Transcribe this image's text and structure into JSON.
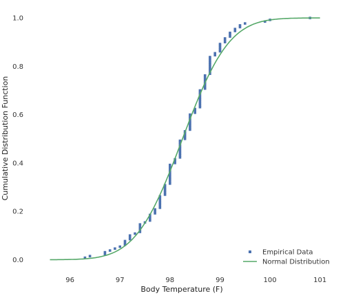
{
  "chart_data": {
    "type": "scatter",
    "title": "",
    "xlabel": "Body Temperature (F)",
    "ylabel": "Cumulative Distribution Function",
    "xlim": [
      95.4,
      101.1
    ],
    "ylim": [
      -0.03,
      1.04
    ],
    "x_ticks": [
      96,
      97,
      98,
      99,
      100,
      101
    ],
    "y_ticks": [
      0.0,
      0.2,
      0.4,
      0.6,
      0.8,
      1.0
    ],
    "x_tick_labels": [
      "96",
      "97",
      "98",
      "99",
      "100",
      "101"
    ],
    "y_tick_labels": [
      "0.0",
      "0.2",
      "0.4",
      "0.6",
      "0.8",
      "1.0"
    ],
    "grid": false,
    "legend_position": "bottom-right",
    "series": [
      {
        "name": "Empirical Data",
        "kind": "points",
        "color": "#4c72b0",
        "points": [
          [
            96.3,
            0.008
          ],
          [
            96.4,
            0.015
          ],
          [
            96.7,
            0.023
          ],
          [
            96.7,
            0.031
          ],
          [
            96.8,
            0.038
          ],
          [
            96.9,
            0.046
          ],
          [
            97.0,
            0.054
          ],
          [
            97.1,
            0.062
          ],
          [
            97.1,
            0.069
          ],
          [
            97.1,
            0.077
          ],
          [
            97.2,
            0.085
          ],
          [
            97.2,
            0.092
          ],
          [
            97.2,
            0.1
          ],
          [
            97.3,
            0.108
          ],
          [
            97.4,
            0.115
          ],
          [
            97.4,
            0.123
          ],
          [
            97.4,
            0.131
          ],
          [
            97.4,
            0.138
          ],
          [
            97.4,
            0.146
          ],
          [
            97.5,
            0.154
          ],
          [
            97.6,
            0.162
          ],
          [
            97.6,
            0.169
          ],
          [
            97.6,
            0.177
          ],
          [
            97.6,
            0.185
          ],
          [
            97.7,
            0.192
          ],
          [
            97.7,
            0.2
          ],
          [
            97.7,
            0.208
          ],
          [
            97.8,
            0.215
          ],
          [
            97.8,
            0.223
          ],
          [
            97.8,
            0.231
          ],
          [
            97.8,
            0.238
          ],
          [
            97.8,
            0.246
          ],
          [
            97.8,
            0.254
          ],
          [
            97.8,
            0.262
          ],
          [
            97.9,
            0.269
          ],
          [
            97.9,
            0.277
          ],
          [
            97.9,
            0.285
          ],
          [
            97.9,
            0.292
          ],
          [
            97.9,
            0.3
          ],
          [
            97.9,
            0.308
          ],
          [
            98.0,
            0.315
          ],
          [
            98.0,
            0.323
          ],
          [
            98.0,
            0.331
          ],
          [
            98.0,
            0.338
          ],
          [
            98.0,
            0.346
          ],
          [
            98.0,
            0.354
          ],
          [
            98.0,
            0.362
          ],
          [
            98.0,
            0.369
          ],
          [
            98.0,
            0.377
          ],
          [
            98.0,
            0.385
          ],
          [
            98.0,
            0.392
          ],
          [
            98.1,
            0.4
          ],
          [
            98.1,
            0.408
          ],
          [
            98.1,
            0.415
          ],
          [
            98.2,
            0.423
          ],
          [
            98.2,
            0.431
          ],
          [
            98.2,
            0.438
          ],
          [
            98.2,
            0.446
          ],
          [
            98.2,
            0.454
          ],
          [
            98.2,
            0.462
          ],
          [
            98.2,
            0.469
          ],
          [
            98.2,
            0.477
          ],
          [
            98.2,
            0.485
          ],
          [
            98.2,
            0.492
          ],
          [
            98.3,
            0.5
          ],
          [
            98.3,
            0.508
          ],
          [
            98.3,
            0.515
          ],
          [
            98.3,
            0.523
          ],
          [
            98.3,
            0.531
          ],
          [
            98.4,
            0.538
          ],
          [
            98.4,
            0.546
          ],
          [
            98.4,
            0.554
          ],
          [
            98.4,
            0.562
          ],
          [
            98.4,
            0.569
          ],
          [
            98.4,
            0.577
          ],
          [
            98.4,
            0.585
          ],
          [
            98.4,
            0.592
          ],
          [
            98.4,
            0.6
          ],
          [
            98.5,
            0.608
          ],
          [
            98.5,
            0.615
          ],
          [
            98.5,
            0.623
          ],
          [
            98.6,
            0.631
          ],
          [
            98.6,
            0.638
          ],
          [
            98.6,
            0.646
          ],
          [
            98.6,
            0.654
          ],
          [
            98.6,
            0.662
          ],
          [
            98.6,
            0.669
          ],
          [
            98.6,
            0.677
          ],
          [
            98.6,
            0.685
          ],
          [
            98.6,
            0.692
          ],
          [
            98.6,
            0.7
          ],
          [
            98.7,
            0.708
          ],
          [
            98.7,
            0.715
          ],
          [
            98.7,
            0.723
          ],
          [
            98.7,
            0.731
          ],
          [
            98.7,
            0.738
          ],
          [
            98.7,
            0.746
          ],
          [
            98.7,
            0.754
          ],
          [
            98.7,
            0.762
          ],
          [
            98.8,
            0.769
          ],
          [
            98.8,
            0.777
          ],
          [
            98.8,
            0.785
          ],
          [
            98.8,
            0.792
          ],
          [
            98.8,
            0.8
          ],
          [
            98.8,
            0.808
          ],
          [
            98.8,
            0.815
          ],
          [
            98.8,
            0.823
          ],
          [
            98.8,
            0.831
          ],
          [
            98.8,
            0.838
          ],
          [
            98.9,
            0.846
          ],
          [
            98.9,
            0.854
          ],
          [
            99.0,
            0.862
          ],
          [
            99.0,
            0.869
          ],
          [
            99.0,
            0.877
          ],
          [
            99.0,
            0.885
          ],
          [
            99.0,
            0.892
          ],
          [
            99.1,
            0.9
          ],
          [
            99.1,
            0.908
          ],
          [
            99.1,
            0.915
          ],
          [
            99.2,
            0.923
          ],
          [
            99.2,
            0.931
          ],
          [
            99.2,
            0.938
          ],
          [
            99.3,
            0.946
          ],
          [
            99.3,
            0.954
          ],
          [
            99.4,
            0.962
          ],
          [
            99.4,
            0.969
          ],
          [
            99.5,
            0.977
          ],
          [
            99.9,
            0.985
          ],
          [
            100.0,
            0.992
          ],
          [
            100.8,
            1.0
          ]
        ]
      },
      {
        "name": "Normal Distribution",
        "kind": "line",
        "color": "#55a868",
        "mean": 98.25,
        "std": 0.73,
        "x_range": [
          95.6,
          101.0
        ]
      }
    ]
  }
}
